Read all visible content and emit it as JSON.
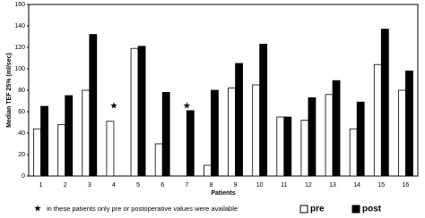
{
  "chart_data": {
    "type": "bar",
    "y_label": "Median TEF 25% (ml/sec)",
    "x_label": "Patients",
    "categories": [
      "1",
      "2",
      "3",
      "4",
      "5",
      "6",
      "7",
      "8",
      "9",
      "10",
      "11",
      "12",
      "13",
      "14",
      "15",
      "16"
    ],
    "series": [
      {
        "name": "pre",
        "color": "#ffffff",
        "values": [
          44,
          48,
          80,
          51,
          119,
          30,
          null,
          10,
          82,
          85,
          55,
          52,
          76,
          44,
          104,
          80
        ]
      },
      {
        "name": "post",
        "color": "#000000",
        "values": [
          65,
          75,
          132,
          null,
          121,
          78,
          61,
          80,
          105,
          123,
          55,
          73,
          89,
          69,
          137,
          98
        ]
      }
    ],
    "ylim": [
      0,
      160
    ],
    "yticks": [
      0,
      20,
      40,
      60,
      80,
      100,
      120,
      140,
      160
    ],
    "grid": false,
    "note_marker": "★",
    "note": "in these patients only pre or postoperative values were available"
  }
}
